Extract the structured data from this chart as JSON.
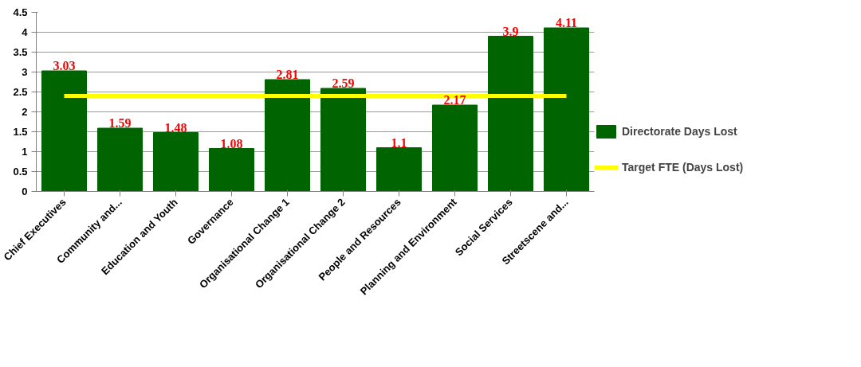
{
  "chart_data": {
    "type": "bar",
    "categories": [
      "Chief Executives",
      "Community and...",
      "Education and Youth",
      "Governance",
      "Organisational Change 1",
      "Organisational Change 2",
      "People and Resources",
      "Planning and Environment",
      "Social Services",
      "Streetscene and..."
    ],
    "series": [
      {
        "name": "Directorate Days Lost",
        "color": "#006400",
        "values": [
          3.03,
          1.59,
          1.48,
          1.08,
          2.81,
          2.59,
          1.1,
          2.17,
          3.9,
          4.11
        ],
        "value_labels": [
          "3.03",
          "1.59",
          "1.48",
          "1.08",
          "2.81",
          "2.59",
          "1.1",
          "2.17",
          "3.9",
          "4.11"
        ]
      },
      {
        "name": "Target FTE (Days Lost)",
        "type": "line",
        "color": "#ffff00",
        "values": [
          2.4,
          2.4,
          2.4,
          2.4,
          2.4,
          2.4,
          2.4,
          2.4,
          2.4,
          2.4
        ]
      }
    ],
    "ylim": [
      0,
      4.5
    ],
    "yticks": [
      0,
      0.5,
      1,
      1.5,
      2,
      2.5,
      3,
      3.5,
      4,
      4.5
    ],
    "grid": "y",
    "legend": "bottom right",
    "marker": "none",
    "line_style": "solid"
  }
}
